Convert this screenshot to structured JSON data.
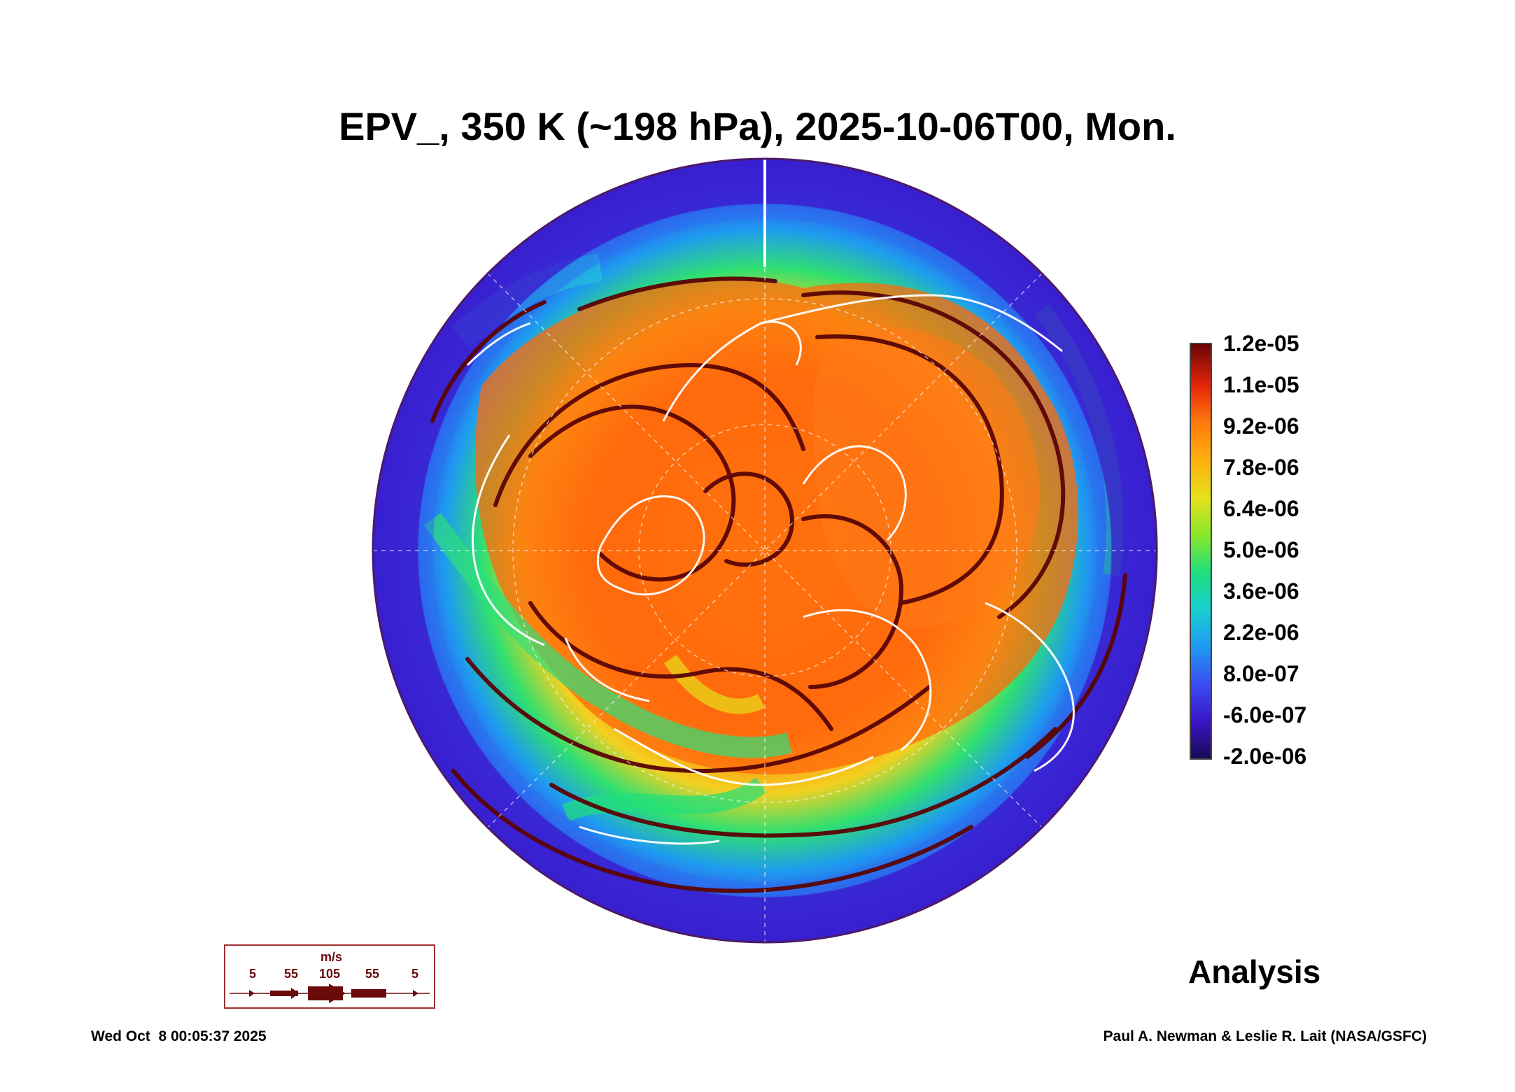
{
  "title": "EPV_, 350 K (~198 hPa), 2025-10-06T00, Mon.",
  "colorbar": {
    "labels": [
      "1.2e-05",
      "1.1e-05",
      "9.2e-06",
      "7.8e-06",
      "6.4e-06",
      "5.0e-06",
      "3.6e-06",
      "2.2e-06",
      "8.0e-07",
      "-6.0e-07",
      "-2.0e-06"
    ],
    "colors": [
      "#1a0a55",
      "#3a16c8",
      "#3a4df5",
      "#1e9bf0",
      "#17d0d0",
      "#1fe07a",
      "#8ae82a",
      "#e6e01a",
      "#ffb00e",
      "#ff7a0c",
      "#e5240a",
      "#6a0505"
    ]
  },
  "analysis_label": "Analysis",
  "wind_legend": {
    "unit": "m/s",
    "speeds": [
      "5",
      "55",
      "105",
      "55",
      "5"
    ]
  },
  "footer": {
    "date": "Wed Oct  8 00:05:37 2025",
    "credit": "Paul A. Newman & Leslie R. Lait (NASA/GSFC)"
  },
  "map_colors": {
    "low": "#3a16c8",
    "mid": "#1fe07a",
    "high": "#ff7a0c",
    "streamline": "#5a0505",
    "coast": "#ffffff"
  }
}
